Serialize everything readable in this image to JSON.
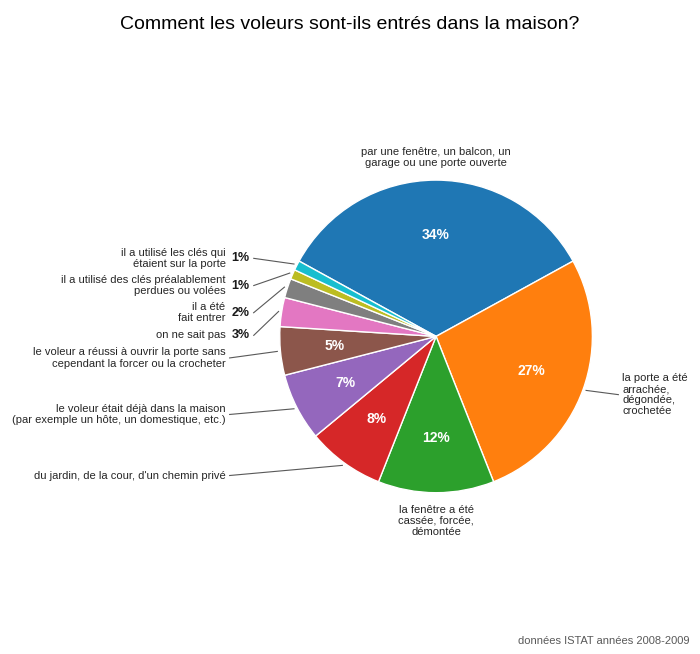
{
  "chart_data": {
    "type": "pie",
    "title": "Comment les voleurs sont-ils entrés dans la maison?",
    "categories": [
      "par une fenêtre, un balcon, un\ngarage ou une porte ouverte",
      "la porte a été\narrachée,\ndégondée,\ncrochetée",
      "la fenêtre a été\ncassée, forcée,\ndémontée",
      "du jardin, de la cour, d'un chemin privé",
      "le voleur était déjà dans la maison\n(par exemple un hôte, un domestique, etc.)",
      "le voleur a réussi à ouvrir la porte sans\ncependant la forcer ou la crocheter",
      "on ne sait pas",
      "il a été\nfait entrer",
      "il a utilisé des clés préalablement\nperdues ou volées",
      "il a utilisé les clés qui\nétaient sur la porte"
    ],
    "values": [
      34,
      27,
      12,
      8,
      7,
      5,
      3,
      2,
      1,
      1
    ],
    "value_labels": [
      "34%",
      "27%",
      "12%",
      "8%",
      "7%",
      "5%",
      "3%",
      "2%",
      "1%",
      "1%"
    ],
    "data_labels": true,
    "annotations": [
      "données ISTAT années 2008-2009"
    ]
  }
}
